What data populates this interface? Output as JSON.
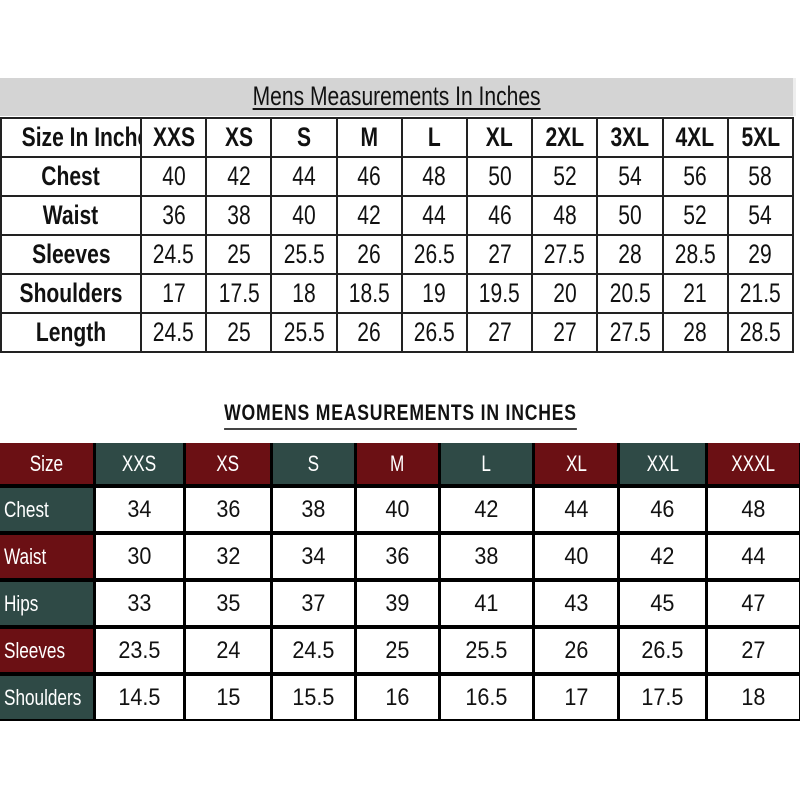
{
  "mens": {
    "title": "Mens Measurements In Inches",
    "header_label": "Size In Inches",
    "sizes": [
      "XXS",
      "XS",
      "S",
      "M",
      "L",
      "XL",
      "2XL",
      "3XL",
      "4XL",
      "5XL"
    ],
    "rows": [
      {
        "label": "Chest",
        "values": [
          "40",
          "42",
          "44",
          "46",
          "48",
          "50",
          "52",
          "54",
          "56",
          "58"
        ]
      },
      {
        "label": "Waist",
        "values": [
          "36",
          "38",
          "40",
          "42",
          "44",
          "46",
          "48",
          "50",
          "52",
          "54"
        ]
      },
      {
        "label": "Sleeves",
        "values": [
          "24.5",
          "25",
          "25.5",
          "26",
          "26.5",
          "27",
          "27.5",
          "28",
          "28.5",
          "29"
        ]
      },
      {
        "label": "Shoulders",
        "values": [
          "17",
          "17.5",
          "18",
          "18.5",
          "19",
          "19.5",
          "20",
          "20.5",
          "21",
          "21.5"
        ]
      },
      {
        "label": "Length",
        "values": [
          "24.5",
          "25",
          "25.5",
          "26",
          "26.5",
          "27",
          "27",
          "27.5",
          "28",
          "28.5"
        ]
      }
    ]
  },
  "womens": {
    "title": "WOMENS MEASUREMENTS IN INCHES",
    "header_label": "Size",
    "sizes": [
      "XXS",
      "XS",
      "S",
      "M",
      "L",
      "XL",
      "XXL",
      "XXXL"
    ],
    "rows": [
      {
        "label": "Chest",
        "values": [
          "34",
          "36",
          "38",
          "40",
          "42",
          "44",
          "46",
          "48"
        ]
      },
      {
        "label": "Waist",
        "values": [
          "30",
          "32",
          "34",
          "36",
          "38",
          "40",
          "42",
          "44"
        ]
      },
      {
        "label": "Hips",
        "values": [
          "33",
          "35",
          "37",
          "39",
          "41",
          "43",
          "45",
          "47"
        ]
      },
      {
        "label": "Sleeves",
        "values": [
          "23.5",
          "24",
          "24.5",
          "25",
          "25.5",
          "26",
          "26.5",
          "27"
        ]
      },
      {
        "label": "Shoulders",
        "values": [
          "14.5",
          "15",
          "15.5",
          "16",
          "16.5",
          "17",
          "17.5",
          "18"
        ]
      }
    ],
    "colors": {
      "maroon": "#6b1014",
      "teal": "#2f4a46"
    },
    "header_colors": [
      "maroon",
      "teal",
      "maroon",
      "teal",
      "maroon",
      "teal",
      "maroon",
      "teal",
      "maroon"
    ],
    "row_label_colors": [
      "teal",
      "maroon",
      "teal",
      "maroon",
      "teal"
    ]
  }
}
